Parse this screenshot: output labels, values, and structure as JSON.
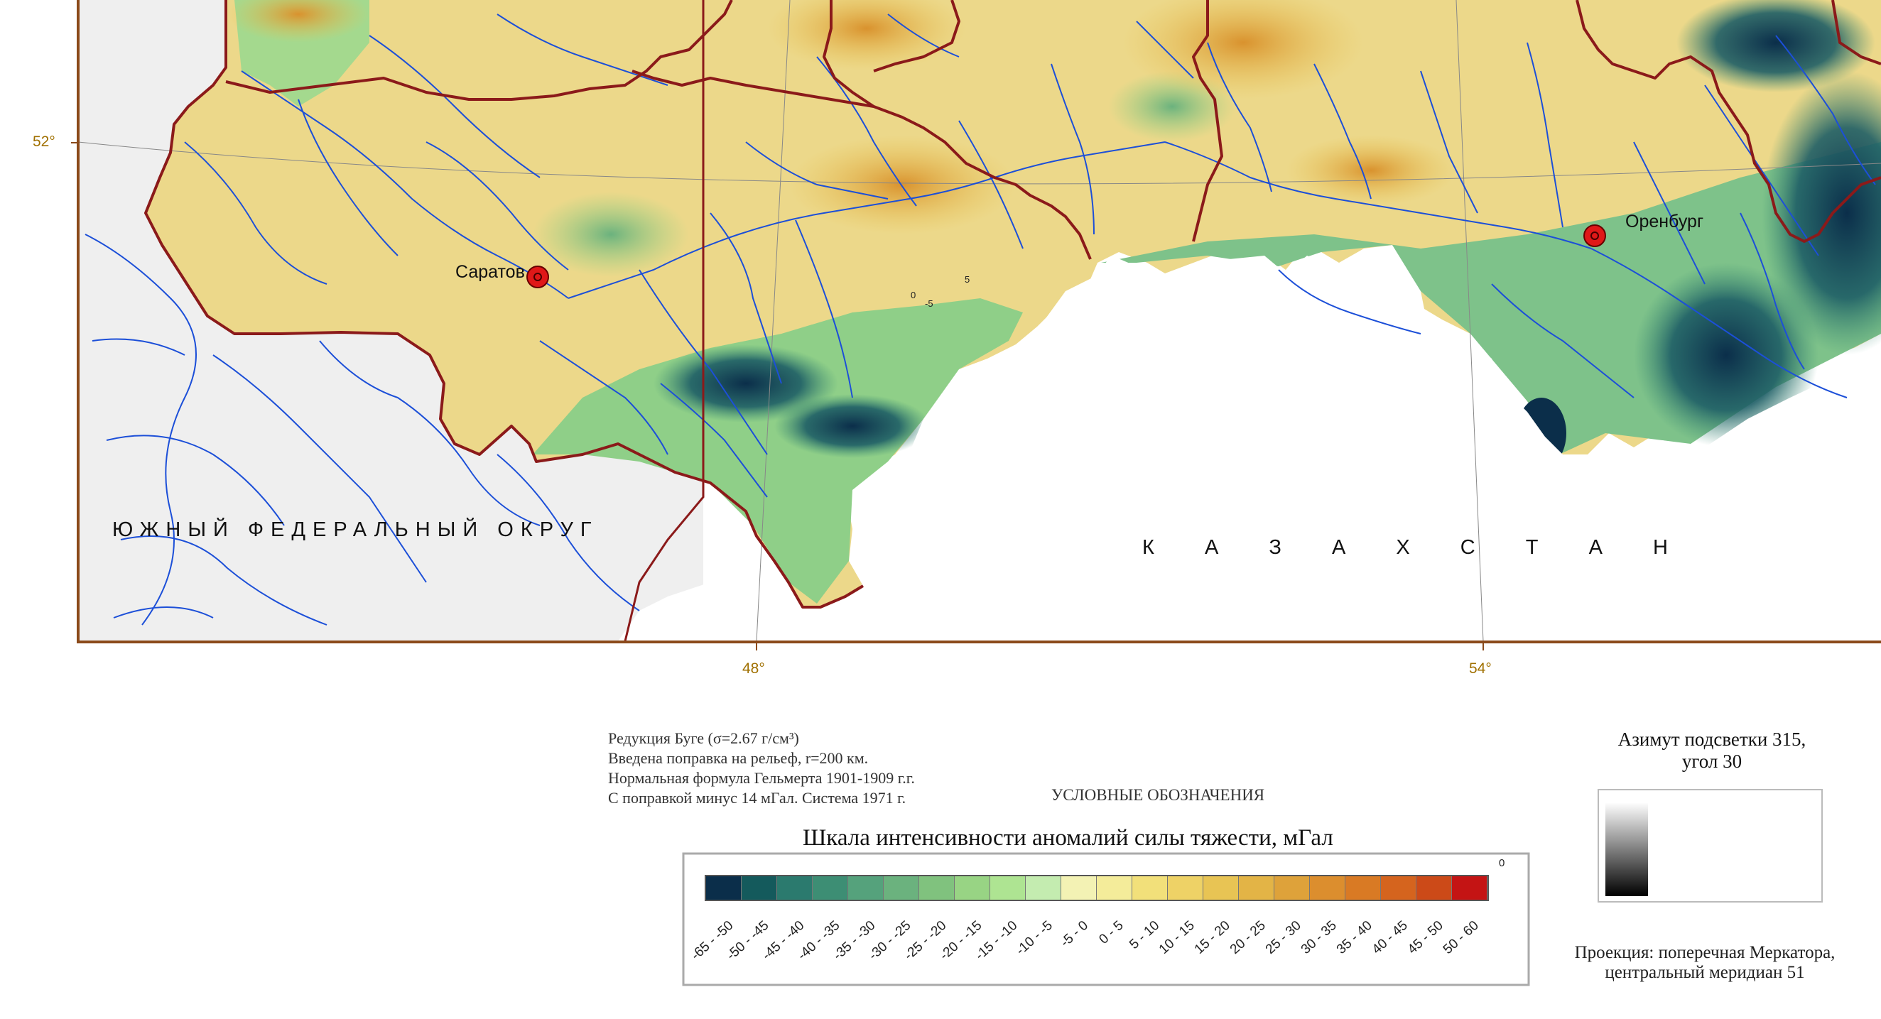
{
  "coordinates": {
    "lat_52": "52°",
    "lon_48": "48°",
    "lon_54": "54°"
  },
  "cities": {
    "saratov": "Саратов",
    "orenburg": "Оренбург"
  },
  "map_labels": {
    "south_district": "ЮЖНЫЙ ФЕДЕРАЛЬНЫЙ ОКРУГ",
    "kazakhstan": [
      "К",
      "А",
      "З",
      "А",
      "Х",
      "С",
      "Т",
      "А",
      "Н"
    ],
    "contour_values": [
      "0",
      "5",
      "-5"
    ]
  },
  "notes": [
    "Редукция Буге (σ=2.67 г/см³)",
    "Введена поправка на рельеф, r=200 км.",
    "Нормальная формула Гельмерта 1901-1909 г.г.",
    "С поправкой минус 14 мГал. Система 1971 г."
  ],
  "legend": {
    "heading": "УСЛОВНЫЕ ОБОЗНАЧЕНИЯ",
    "title": "Шкала интенсивности аномалий силы тяжести, мГал",
    "zero_mark": "0",
    "ranges": [
      "-65 - -50",
      "-50 - -45",
      "-45 - -40",
      "-40 - -35",
      "-35 - -30",
      "-30 - -25",
      "-25 - -20",
      "-20 - -15",
      "-15 - -10",
      "-10 - -5",
      "-5 - 0",
      "0 - 5",
      "5 - 10",
      "10 - 15",
      "15 - 20",
      "20 - 25",
      "25 - 30",
      "30 - 35",
      "35 - 40",
      "40 - 45",
      "45 - 50",
      "50 - 60"
    ],
    "colors": [
      "#0b2e4a",
      "#145a5c",
      "#2b7a6e",
      "#3d8e74",
      "#55a27c",
      "#6bb27e",
      "#80c27e",
      "#98d484",
      "#aee492",
      "#c4ecb0",
      "#f3f2b4",
      "#f4ec9a",
      "#f2e07a",
      "#eed266",
      "#e8c454",
      "#e3b446",
      "#dea23a",
      "#dc8e2e",
      "#d97a24",
      "#d5641e",
      "#cc4a18",
      "#c41414"
    ]
  },
  "hillshade": {
    "title_line1": "Азимут подсветки 315,",
    "title_line2": "угол 30"
  },
  "projection": {
    "line1": "Проекция: поперечная Меркатора,",
    "line2": "центральный меридиан 51"
  },
  "colors": {
    "boundary": "#8b1a1a",
    "frame": "#8b4a1a",
    "river": "#1c4fd8",
    "outside_land": "#efefef"
  }
}
